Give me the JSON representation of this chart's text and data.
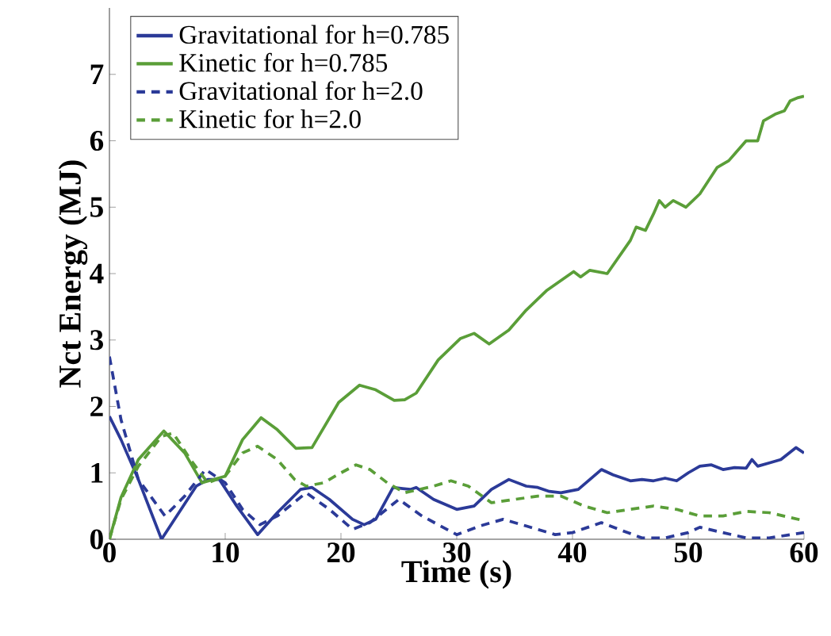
{
  "chart_data": {
    "type": "line",
    "xlabel": "Time (s)",
    "ylabel": "Nct Energy (MJ)",
    "xlim": [
      0,
      60
    ],
    "ylim": [
      0,
      8
    ],
    "xticks": [
      0,
      10,
      20,
      30,
      40,
      50,
      60
    ],
    "yticks": [
      0,
      1,
      2,
      3,
      4,
      5,
      6,
      7
    ],
    "legend": "top left",
    "series": [
      {
        "name": "Gravitational for h=0.785",
        "color": "#2b3a98",
        "line_style": "solid",
        "x": [
          0,
          1,
          2.5,
          4.5,
          6,
          7.5,
          8.5,
          9.5,
          11,
          12.8,
          14.5,
          16.5,
          17.5,
          19,
          21,
          22,
          23,
          24.5,
          26,
          26.5,
          28,
          30,
          31.5,
          33,
          34.5,
          36,
          37,
          38,
          39,
          40.5,
          41.5,
          42.5,
          43.5,
          45,
          46,
          47,
          48,
          49,
          50,
          51,
          52,
          53,
          54,
          55,
          55.5,
          56,
          57,
          58,
          59.3,
          60
        ],
        "values": [
          1.85,
          1.5,
          0.9,
          0.0,
          0.4,
          0.8,
          0.9,
          0.9,
          0.5,
          0.07,
          0.4,
          0.75,
          0.78,
          0.6,
          0.3,
          0.22,
          0.3,
          0.78,
          0.75,
          0.78,
          0.6,
          0.45,
          0.5,
          0.75,
          0.9,
          0.8,
          0.78,
          0.72,
          0.7,
          0.75,
          0.9,
          1.05,
          0.97,
          0.88,
          0.9,
          0.88,
          0.92,
          0.88,
          1.0,
          1.1,
          1.12,
          1.05,
          1.08,
          1.07,
          1.2,
          1.1,
          1.15,
          1.2,
          1.38,
          1.3
        ]
      },
      {
        "name": "Kinetic for h=0.785",
        "color": "#5a9e38",
        "line_style": "solid",
        "x": [
          0,
          1,
          2.5,
          4.7,
          6.5,
          8,
          10,
          11.5,
          13.1,
          14.5,
          16.1,
          17.5,
          19.8,
          21.6,
          23,
          24.6,
          25.5,
          26.5,
          28.4,
          30.3,
          31.5,
          32.8,
          34.5,
          36,
          37.8,
          40.1,
          40.7,
          41.5,
          43,
          45,
          45.5,
          46.3,
          47,
          47.5,
          48,
          48.7,
          49.8,
          51,
          52.5,
          53.5,
          54,
          55,
          56,
          56.5,
          57.5,
          58.3,
          58.8,
          59.5,
          60
        ],
        "values": [
          0,
          0.63,
          1.2,
          1.63,
          1.3,
          0.85,
          0.95,
          1.5,
          1.83,
          1.65,
          1.37,
          1.38,
          2.06,
          2.32,
          2.25,
          2.09,
          2.1,
          2.2,
          2.7,
          3.02,
          3.1,
          2.94,
          3.15,
          3.45,
          3.75,
          4.03,
          3.95,
          4.05,
          4.0,
          4.5,
          4.7,
          4.65,
          4.9,
          5.1,
          5.0,
          5.1,
          5.0,
          5.2,
          5.6,
          5.7,
          5.8,
          6.0,
          6.0,
          6.3,
          6.4,
          6.45,
          6.6,
          6.65,
          6.67
        ]
      },
      {
        "name": "Gravitational for h=2.0",
        "color": "#2b3a98",
        "line_style": "dashed",
        "x": [
          0,
          1,
          2.5,
          4.8,
          6.5,
          8.3,
          10,
          11.5,
          13,
          14.5,
          17,
          19,
          21,
          22.5,
          25,
          27,
          30,
          32,
          34,
          36,
          38.5,
          40,
          42.5,
          44,
          46,
          48,
          50,
          51,
          52.5,
          55,
          57,
          60
        ],
        "values": [
          2.75,
          1.8,
          0.9,
          0.35,
          0.65,
          1.05,
          0.85,
          0.45,
          0.22,
          0.35,
          0.7,
          0.45,
          0.15,
          0.25,
          0.6,
          0.35,
          0.07,
          0.2,
          0.3,
          0.2,
          0.07,
          0.1,
          0.25,
          0.15,
          0.02,
          0.02,
          0.1,
          0.18,
          0.12,
          0.02,
          0.02,
          0.1
        ]
      },
      {
        "name": "Kinetic for h=2.0",
        "color": "#5a9e38",
        "line_style": "dashed",
        "x": [
          0,
          1,
          2.5,
          4.5,
          5.5,
          7,
          8.5,
          10,
          11.5,
          12.8,
          14.5,
          16,
          17,
          18.5,
          20,
          21.3,
          22.5,
          24,
          25.5,
          28,
          29.5,
          31,
          33,
          35,
          37,
          39,
          41,
          43,
          45,
          47,
          49,
          51,
          53,
          55,
          57,
          60
        ],
        "values": [
          0,
          0.6,
          1.1,
          1.55,
          1.6,
          1.2,
          0.85,
          0.95,
          1.3,
          1.4,
          1.2,
          0.9,
          0.8,
          0.85,
          1.0,
          1.12,
          1.05,
          0.85,
          0.7,
          0.8,
          0.88,
          0.8,
          0.55,
          0.6,
          0.65,
          0.65,
          0.5,
          0.4,
          0.45,
          0.5,
          0.45,
          0.35,
          0.35,
          0.42,
          0.4,
          0.28
        ]
      }
    ]
  }
}
